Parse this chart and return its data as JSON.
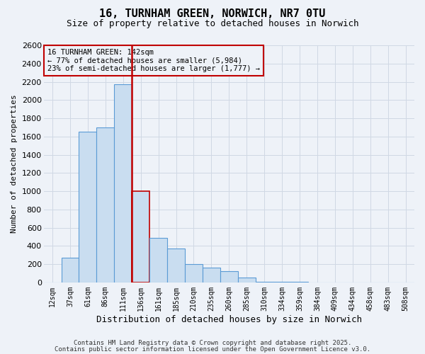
{
  "title": "16, TURNHAM GREEN, NORWICH, NR7 0TU",
  "subtitle": "Size of property relative to detached houses in Norwich",
  "xlabel": "Distribution of detached houses by size in Norwich",
  "ylabel": "Number of detached properties",
  "annotation_title": "16 TURNHAM GREEN: 142sqm",
  "annotation_line1": "← 77% of detached houses are smaller (5,984)",
  "annotation_line2": "23% of semi-detached houses are larger (1,777) →",
  "categories": [
    "12sqm",
    "37sqm",
    "61sqm",
    "86sqm",
    "111sqm",
    "136sqm",
    "161sqm",
    "185sqm",
    "210sqm",
    "235sqm",
    "260sqm",
    "285sqm",
    "310sqm",
    "334sqm",
    "359sqm",
    "384sqm",
    "409sqm",
    "434sqm",
    "458sqm",
    "483sqm",
    "508sqm"
  ],
  "values": [
    0,
    270,
    1650,
    1700,
    2175,
    1000,
    490,
    370,
    200,
    160,
    120,
    50,
    10,
    5,
    5,
    2,
    2,
    1,
    1,
    1,
    0
  ],
  "bar_color": "#c9ddf0",
  "bar_edge_color": "#5b9bd5",
  "highlight_bar_edge_color": "#c00000",
  "highlight_line_color": "#c00000",
  "annotation_box_edge_color": "#c00000",
  "grid_color": "#d0d8e4",
  "background_color": "#eef2f8",
  "ylim": [
    0,
    2600
  ],
  "yticks": [
    0,
    200,
    400,
    600,
    800,
    1000,
    1200,
    1400,
    1600,
    1800,
    2000,
    2200,
    2400,
    2600
  ],
  "highlight_index": 5,
  "footer_line1": "Contains HM Land Registry data © Crown copyright and database right 2025.",
  "footer_line2": "Contains public sector information licensed under the Open Government Licence v3.0."
}
